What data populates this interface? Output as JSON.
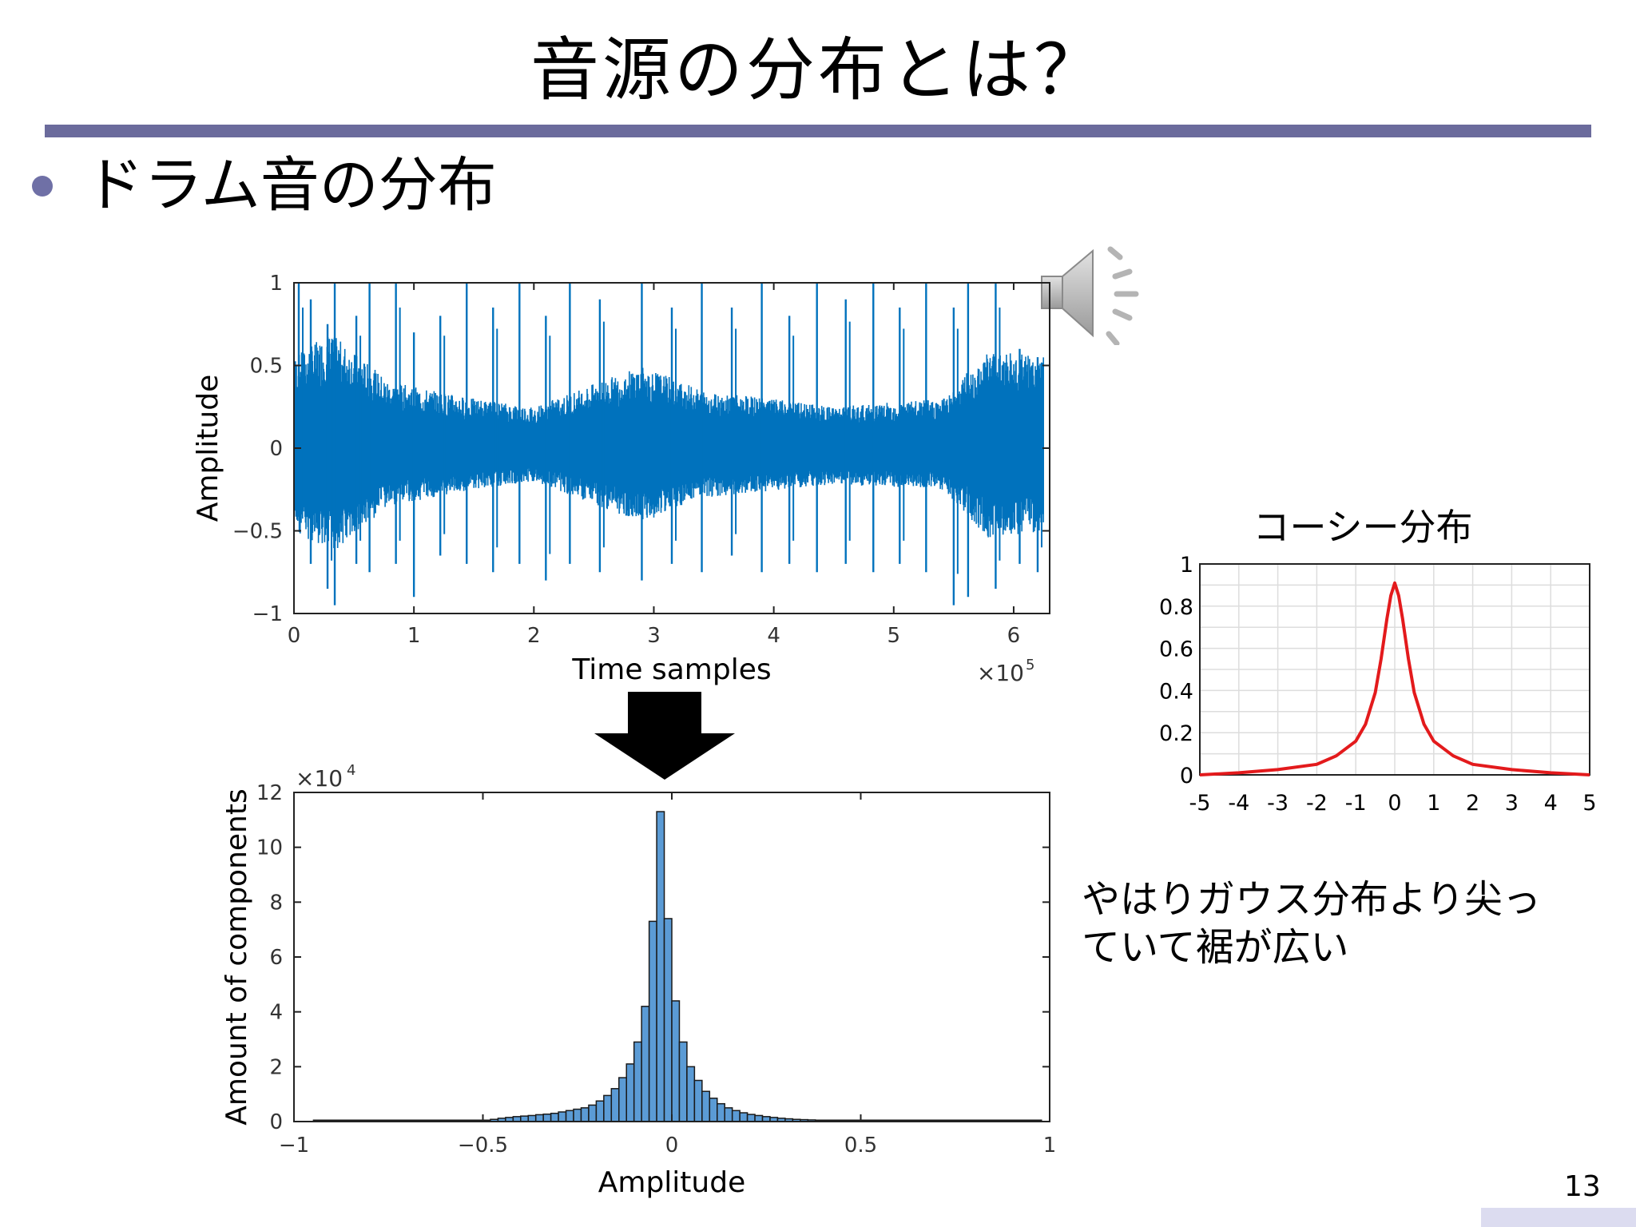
{
  "slide": {
    "title": "音源の分布とは？",
    "bullet": "ドラム音の分布",
    "note_lines": [
      "やはりガウス分布より尖っ",
      "ていて裾が広い"
    ],
    "page_number": "13",
    "accent_color": "#6b6b9c",
    "icon": "speaker-icon"
  },
  "chart_data": [
    {
      "type": "line",
      "title": "",
      "xlabel": "Time samples",
      "ylabel": "Amplitude",
      "x_multiplier_base": "×10",
      "x_multiplier_exp": "5",
      "xlim": [
        0,
        6.3
      ],
      "ylim": [
        -1,
        1
      ],
      "xticks": [
        "0",
        "1",
        "2",
        "3",
        "4",
        "5",
        "6"
      ],
      "yticks": [
        "−1",
        "−0.5",
        "0",
        "0.5",
        "1"
      ],
      "color": "#0072bd",
      "envelope": [
        {
          "x": 0.0,
          "min": -0.5,
          "max": 0.55
        },
        {
          "x": 0.3,
          "min": -0.65,
          "max": 0.7
        },
        {
          "x": 0.8,
          "min": -0.35,
          "max": 0.4
        },
        {
          "x": 1.5,
          "min": -0.25,
          "max": 0.3
        },
        {
          "x": 2.0,
          "min": -0.2,
          "max": 0.25
        },
        {
          "x": 2.9,
          "min": -0.45,
          "max": 0.5
        },
        {
          "x": 3.4,
          "min": -0.3,
          "max": 0.35
        },
        {
          "x": 4.5,
          "min": -0.22,
          "max": 0.25
        },
        {
          "x": 5.4,
          "min": -0.25,
          "max": 0.3
        },
        {
          "x": 5.8,
          "min": -0.55,
          "max": 0.6
        },
        {
          "x": 6.25,
          "min": -0.5,
          "max": 0.55
        }
      ],
      "spikes": [
        {
          "x": 0.04,
          "min": -0.4,
          "max": 1.0
        },
        {
          "x": 0.14,
          "min": -0.7,
          "max": 0.9
        },
        {
          "x": 0.28,
          "min": -0.85,
          "max": 0.75
        },
        {
          "x": 0.34,
          "min": -0.95,
          "max": 1.0
        },
        {
          "x": 0.52,
          "min": -0.7,
          "max": 0.8
        },
        {
          "x": 0.63,
          "min": -0.75,
          "max": 1.0
        },
        {
          "x": 0.85,
          "min": -0.7,
          "max": 1.0
        },
        {
          "x": 1.0,
          "min": -0.9,
          "max": 0.7
        },
        {
          "x": 1.22,
          "min": -0.65,
          "max": 0.8
        },
        {
          "x": 1.44,
          "min": -0.7,
          "max": 1.0
        },
        {
          "x": 1.66,
          "min": -0.75,
          "max": 0.85
        },
        {
          "x": 1.88,
          "min": -0.7,
          "max": 1.0
        },
        {
          "x": 2.1,
          "min": -0.8,
          "max": 0.8
        },
        {
          "x": 2.3,
          "min": -0.7,
          "max": 1.0
        },
        {
          "x": 2.55,
          "min": -0.75,
          "max": 0.9
        },
        {
          "x": 2.9,
          "min": -0.8,
          "max": 1.0
        },
        {
          "x": 3.15,
          "min": -0.7,
          "max": 0.85
        },
        {
          "x": 3.4,
          "min": -0.75,
          "max": 1.0
        },
        {
          "x": 3.65,
          "min": -0.65,
          "max": 0.85
        },
        {
          "x": 3.9,
          "min": -0.75,
          "max": 1.0
        },
        {
          "x": 4.13,
          "min": -0.7,
          "max": 0.8
        },
        {
          "x": 4.36,
          "min": -0.75,
          "max": 1.0
        },
        {
          "x": 4.6,
          "min": -0.7,
          "max": 0.9
        },
        {
          "x": 4.83,
          "min": -0.75,
          "max": 1.0
        },
        {
          "x": 5.05,
          "min": -0.7,
          "max": 0.85
        },
        {
          "x": 5.27,
          "min": -0.75,
          "max": 1.0
        },
        {
          "x": 5.5,
          "min": -0.95,
          "max": 0.85
        },
        {
          "x": 5.62,
          "min": -0.9,
          "max": 1.0
        },
        {
          "x": 5.85,
          "min": -0.85,
          "max": 1.0
        },
        {
          "x": 6.05,
          "min": -0.7,
          "max": 0.6
        },
        {
          "x": 6.2,
          "min": -0.75,
          "max": 0.55
        }
      ]
    },
    {
      "type": "bar",
      "title": "",
      "xlabel": "Amplitude",
      "ylabel": "Amount of components",
      "y_multiplier_base": "×10",
      "y_multiplier_exp": "4",
      "xlim": [
        -1,
        1
      ],
      "ylim": [
        0,
        12
      ],
      "xticks": [
        "−1",
        "−0.5",
        "0",
        "0.5",
        "1"
      ],
      "yticks": [
        "0",
        "2",
        "4",
        "6",
        "8",
        "10",
        "12"
      ],
      "bin_width": 0.02,
      "bar_color": "#5b9bd5",
      "bin_centers": [
        -0.47,
        -0.45,
        -0.43,
        -0.41,
        -0.39,
        -0.37,
        -0.35,
        -0.33,
        -0.31,
        -0.29,
        -0.27,
        -0.25,
        -0.23,
        -0.21,
        -0.19,
        -0.17,
        -0.15,
        -0.13,
        -0.11,
        -0.09,
        -0.07,
        -0.05,
        -0.03,
        -0.01,
        0.01,
        0.03,
        0.05,
        0.07,
        0.09,
        0.11,
        0.13,
        0.15,
        0.17,
        0.19,
        0.21,
        0.23,
        0.25,
        0.27,
        0.29,
        0.31,
        0.33,
        0.35,
        0.37,
        0.39,
        0.41
      ],
      "values": [
        0.08,
        0.12,
        0.15,
        0.18,
        0.2,
        0.22,
        0.25,
        0.27,
        0.3,
        0.35,
        0.4,
        0.45,
        0.5,
        0.6,
        0.75,
        0.95,
        1.2,
        1.6,
        2.1,
        2.9,
        4.2,
        7.3,
        11.3,
        7.4,
        4.4,
        2.9,
        2.0,
        1.5,
        1.1,
        0.85,
        0.65,
        0.5,
        0.4,
        0.32,
        0.26,
        0.22,
        0.18,
        0.15,
        0.12,
        0.1,
        0.08,
        0.07,
        0.06,
        0.05,
        0.04
      ]
    },
    {
      "type": "line",
      "title": "コーシー分布",
      "xlabel": "",
      "ylabel": "",
      "xlim": [
        -5,
        5
      ],
      "ylim": [
        0,
        1
      ],
      "xticks": [
        "-5",
        "-4",
        "-3",
        "-2",
        "-1",
        "0",
        "1",
        "2",
        "3",
        "4",
        "5"
      ],
      "yticks": [
        "0",
        "0.2",
        "0.4",
        "0.6",
        "0.8",
        "1"
      ],
      "grid": true,
      "color": "#e31a1c",
      "x": [
        -5,
        -4,
        -3,
        -2,
        -1.5,
        -1,
        -0.75,
        -0.5,
        -0.35,
        -0.2,
        -0.1,
        0,
        0.1,
        0.2,
        0.35,
        0.5,
        0.75,
        1,
        1.5,
        2,
        3,
        4,
        5
      ],
      "y": [
        0.0,
        0.01,
        0.025,
        0.05,
        0.09,
        0.16,
        0.24,
        0.39,
        0.55,
        0.74,
        0.85,
        0.91,
        0.85,
        0.74,
        0.55,
        0.39,
        0.24,
        0.16,
        0.09,
        0.05,
        0.025,
        0.01,
        0.0
      ]
    }
  ]
}
